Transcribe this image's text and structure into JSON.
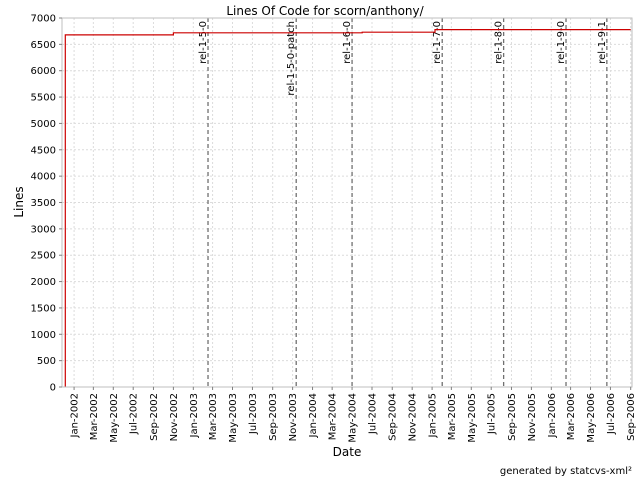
{
  "chart_data": {
    "type": "line",
    "title": "Lines Of Code for scorn/anthony/",
    "xlabel": "Date",
    "ylabel": "Lines",
    "ylim": [
      0,
      7000
    ],
    "y_ticks": [
      "0",
      "500",
      "1000",
      "1500",
      "2000",
      "2500",
      "3000",
      "3500",
      "4000",
      "4500",
      "5000",
      "5500",
      "6000",
      "6500",
      "7000"
    ],
    "x_ticks": [
      "Jan-2002",
      "Mar-2002",
      "May-2002",
      "Jul-2002",
      "Sep-2002",
      "Nov-2002",
      "Jan-2003",
      "Mar-2003",
      "May-2003",
      "Jul-2003",
      "Sep-2003",
      "Nov-2003",
      "Jan-2004",
      "Mar-2004",
      "May-2004",
      "Jul-2004",
      "Sep-2004",
      "Nov-2004",
      "Jan-2005",
      "Mar-2005",
      "May-2005",
      "Jul-2005",
      "Sep-2005",
      "Nov-2005",
      "Jan-2006",
      "Mar-2006",
      "May-2006",
      "Jul-2006",
      "Sep-2006"
    ],
    "grid": true,
    "series": [
      {
        "color": "#cc0000",
        "points": [
          {
            "x": "2001-12-05",
            "y": 0
          },
          {
            "x": "2001-12-05",
            "y": 6680
          },
          {
            "x": "2002-11-01",
            "y": 6680
          },
          {
            "x": "2002-11-01",
            "y": 6720
          },
          {
            "x": "2004-06-01",
            "y": 6720
          },
          {
            "x": "2004-06-01",
            "y": 6730
          },
          {
            "x": "2005-01-10",
            "y": 6730
          },
          {
            "x": "2005-01-10",
            "y": 6780
          },
          {
            "x": "2006-09-01",
            "y": 6780
          }
        ]
      }
    ],
    "markers": [
      {
        "label": "rel-1-5-0",
        "date": "2003-02-15"
      },
      {
        "label": "rel-1-5-0-patch",
        "date": "2003-11-12"
      },
      {
        "label": "rel-1-6-0",
        "date": "2004-05-01"
      },
      {
        "label": "rel-1-7-0",
        "date": "2005-02-01"
      },
      {
        "label": "rel-1-8-0",
        "date": "2005-08-08"
      },
      {
        "label": "rel-1-9-0",
        "date": "2006-02-15"
      },
      {
        "label": "rel-1-9-1",
        "date": "2006-06-20"
      }
    ]
  },
  "credit": "generated by statcvs-xml²"
}
